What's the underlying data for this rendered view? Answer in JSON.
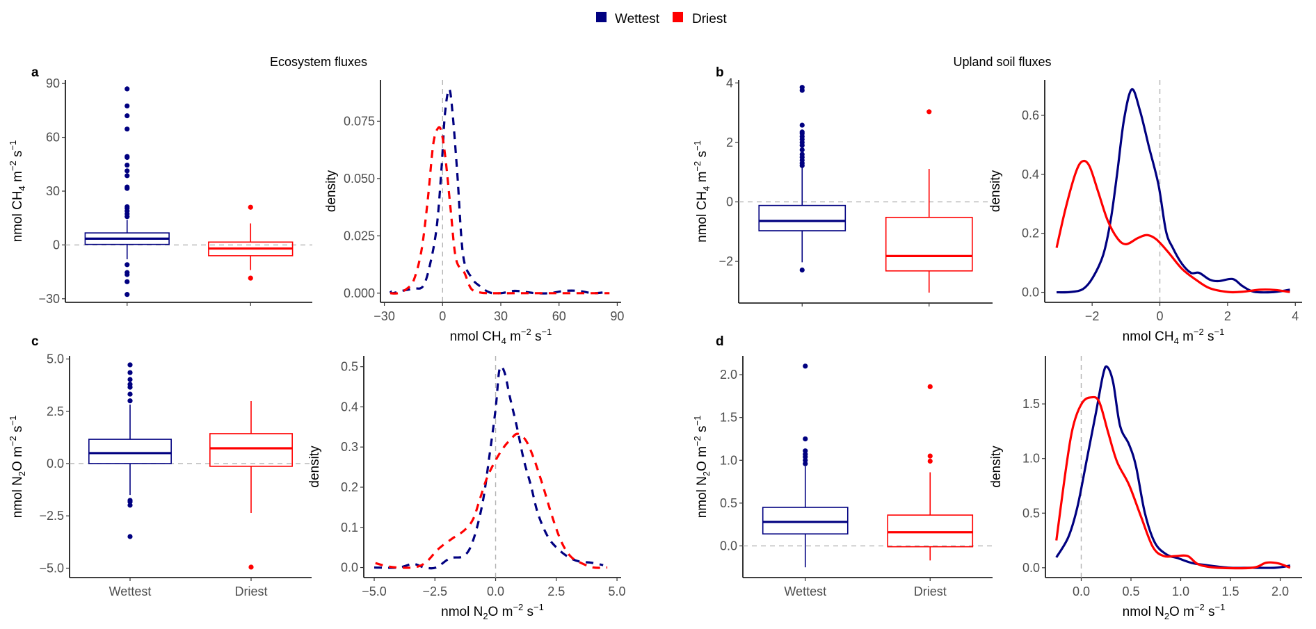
{
  "legend": {
    "items": [
      {
        "label": "Wettest",
        "color": "#000080"
      },
      {
        "label": "Driest",
        "color": "#ff0000"
      }
    ]
  },
  "titles": {
    "ecosystem": "Ecosystem fluxes",
    "upland": "Upland soil fluxes"
  },
  "chart_data": [
    {
      "id": "a-box",
      "panel_letter": "a",
      "type": "box",
      "title": "",
      "xlabel": "",
      "ylabel": {
        "pre": "nmol CH",
        "sub": "4",
        "mid": " m",
        "sup1": "−2",
        "mid2": " s",
        "sup2": "−1"
      },
      "categories": [
        "Wettest",
        "Driest"
      ],
      "show_category_labels": false,
      "ylim": [
        -32,
        92
      ],
      "yticks": [
        -30,
        0,
        30,
        60,
        90
      ],
      "ytick_labels": [
        "−30",
        "0",
        "30",
        "60",
        "90"
      ],
      "reference_line": 0,
      "series": [
        {
          "name": "Wettest",
          "color": "#000080",
          "q1": 0.3,
          "median": 3.5,
          "q3": 6.7,
          "whisker_low": -8,
          "whisker_high": 14,
          "outliers": [
            87,
            77.5,
            72,
            64.6,
            49.3,
            48.8,
            44.5,
            41.3,
            38.6,
            32.3,
            31.5,
            21.3,
            20.4,
            18.9,
            17.3,
            15.8,
            -11,
            -15.4,
            -16.5,
            -20.5,
            -27.6
          ]
        },
        {
          "name": "Driest",
          "color": "#ff0000",
          "q1": -6,
          "median": -2,
          "q3": 1.6,
          "whisker_low": -14,
          "whisker_high": 12,
          "outliers": [
            21,
            -18.5
          ]
        }
      ]
    },
    {
      "id": "a-density",
      "type": "line",
      "line_style": "dashed",
      "xlabel": {
        "pre": "nmol CH",
        "sub": "4",
        "mid": " m",
        "sup1": "−2",
        "mid2": " s",
        "sup2": "−1"
      },
      "ylabel": "density",
      "xlim": [
        -32,
        92
      ],
      "ylim": [
        -0.004,
        0.093
      ],
      "xticks": [
        -30,
        0,
        30,
        60,
        90
      ],
      "xtick_labels": [
        "−30",
        "0",
        "30",
        "60",
        "90"
      ],
      "yticks": [
        0,
        0.025,
        0.05,
        0.075
      ],
      "ytick_labels": [
        "0.000",
        "0.025",
        "0.050",
        "0.075"
      ],
      "reference_line_x": 0,
      "series": [
        {
          "name": "Wettest",
          "color": "#000080",
          "x": [
            -26.8,
            -26,
            -21,
            -14.7,
            -10.1,
            -6.6,
            -3.0,
            -0.5,
            1.2,
            3.4,
            5.2,
            7.6,
            10.5,
            14.7,
            19.3,
            24.3,
            30,
            37,
            43,
            48,
            55,
            63,
            70,
            77.5,
            84.6
          ],
          "y": [
            0.001,
            0.0,
            0.001,
            0.002,
            0.003,
            0.012,
            0.029,
            0.055,
            0.078,
            0.089,
            0.078,
            0.052,
            0.017,
            0.007,
            0.003,
            0.0003,
            0,
            0.001,
            0.0005,
            0,
            0,
            0.001,
            0.001,
            0,
            0.0005
          ]
        },
        {
          "name": "Driest",
          "color": "#ff0000",
          "x": [
            -27,
            -23,
            -18.3,
            -14.7,
            -10.8,
            -7.6,
            -4.8,
            -2.3,
            -0.5,
            1.6,
            4.1,
            6.9,
            11.2,
            14.7,
            19.3,
            25,
            40,
            60,
            86
          ],
          "y": [
            0,
            0,
            0.002,
            0.006,
            0.019,
            0.041,
            0.065,
            0.072,
            0.07,
            0.058,
            0.037,
            0.015,
            0.009,
            0.002,
            0.0003,
            0,
            0,
            0,
            0
          ]
        }
      ]
    },
    {
      "id": "b-box",
      "panel_letter": "b",
      "type": "box",
      "xlabel": "",
      "ylabel": {
        "pre": "nmol CH",
        "sub": "4",
        "mid": " m",
        "sup1": "−2",
        "mid2": " s",
        "sup2": "−1"
      },
      "categories": [
        "Wettest",
        "Driest"
      ],
      "show_category_labels": false,
      "ylim": [
        -3.4,
        4.1
      ],
      "yticks": [
        -2,
        0,
        2,
        4
      ],
      "ytick_labels": [
        "−2",
        "0",
        "2",
        "4"
      ],
      "reference_line": 0,
      "series": [
        {
          "name": "Wettest",
          "color": "#000080",
          "q1": -0.97,
          "median": -0.64,
          "q3": -0.12,
          "whisker_low": -2.03,
          "whisker_high": 1.16,
          "outliers": [
            3.85,
            3.75,
            2.58,
            2.35,
            2.3,
            2.2,
            2.1,
            2.0,
            1.9,
            1.75,
            1.6,
            1.5,
            1.4,
            1.3,
            1.22,
            -2.29
          ]
        },
        {
          "name": "Driest",
          "color": "#ff0000",
          "q1": -2.32,
          "median": -1.82,
          "q3": -0.52,
          "whisker_low": -3.05,
          "whisker_high": 1.11,
          "outliers": [
            3.03
          ]
        }
      ]
    },
    {
      "id": "b-density",
      "type": "line",
      "line_style": "solid",
      "xlabel": {
        "pre": "nmol CH",
        "sub": "4",
        "mid": " m",
        "sup1": "−2",
        "mid2": " s",
        "sup2": "−1"
      },
      "ylabel": "density",
      "xlim": [
        -3.4,
        4.2
      ],
      "ylim": [
        -0.034,
        0.72
      ],
      "xticks": [
        -2,
        0,
        2,
        4
      ],
      "xtick_labels": [
        "−2",
        "0",
        "2",
        "4"
      ],
      "yticks": [
        0,
        0.2,
        0.4,
        0.6
      ],
      "ytick_labels": [
        "0.0",
        "0.2",
        "0.4",
        "0.6"
      ],
      "reference_line_x": 0,
      "series": [
        {
          "name": "Wettest",
          "color": "#000080",
          "x": [
            -3.05,
            -2.64,
            -2.27,
            -1.98,
            -1.67,
            -1.45,
            -1.26,
            -1.06,
            -0.83,
            -0.59,
            -0.32,
            -0.04,
            0.18,
            0.38,
            0.65,
            0.92,
            1.16,
            1.47,
            1.74,
            2.15,
            2.44,
            2.77,
            3.26,
            3.53,
            3.84
          ],
          "y": [
            0,
            0.001,
            0.011,
            0.05,
            0.128,
            0.246,
            0.404,
            0.585,
            0.688,
            0.617,
            0.492,
            0.364,
            0.208,
            0.151,
            0.097,
            0.066,
            0.066,
            0.043,
            0.038,
            0.045,
            0.021,
            0.002,
            0,
            0.003,
            0.009
          ]
        },
        {
          "name": "Driest",
          "color": "#ff0000",
          "x": [
            -3.05,
            -2.78,
            -2.49,
            -2.29,
            -2.08,
            -1.82,
            -1.55,
            -1.26,
            -1.0,
            -0.65,
            -0.38,
            -0.11,
            0.24,
            0.65,
            1.06,
            1.47,
            2.02,
            2.44,
            2.98,
            3.39,
            3.84
          ],
          "y": [
            0.151,
            0.286,
            0.404,
            0.444,
            0.428,
            0.34,
            0.246,
            0.184,
            0.163,
            0.184,
            0.194,
            0.18,
            0.137,
            0.08,
            0.043,
            0.014,
            0.001,
            0.002,
            0.009,
            0.008,
            0.001
          ]
        }
      ]
    },
    {
      "id": "c-box",
      "panel_letter": "c",
      "type": "box",
      "xlabel": "",
      "ylabel": {
        "pre": "nmol N",
        "sub": "2",
        "mid": "O m",
        "sup1": "−2",
        "mid2": " s",
        "sup2": "−1"
      },
      "categories": [
        "Wettest",
        "Driest"
      ],
      "show_category_labels": true,
      "ylim": [
        -5.45,
        5.15
      ],
      "yticks": [
        -5,
        -2.5,
        0,
        2.5,
        5
      ],
      "ytick_labels": [
        "−5.0",
        "−2.5",
        "0.0",
        "2.5",
        "5.0"
      ],
      "reference_line": 0,
      "series": [
        {
          "name": "Wettest",
          "color": "#000080",
          "q1": 0,
          "median": 0.5,
          "q3": 1.16,
          "whisker_low": -1.5,
          "whisker_high": 2.82,
          "outliers": [
            4.72,
            4.35,
            4.02,
            3.79,
            3.65,
            3.32,
            3.0,
            -1.76,
            -1.83,
            -1.99,
            -3.49
          ]
        },
        {
          "name": "Driest",
          "color": "#ff0000",
          "q1": -0.13,
          "median": 0.73,
          "q3": 1.43,
          "whisker_low": -2.36,
          "whisker_high": 2.99,
          "outliers": [
            -4.95
          ]
        }
      ]
    },
    {
      "id": "c-density",
      "type": "line",
      "line_style": "dashed",
      "xlabel": {
        "pre": "nmol N",
        "sub": "2",
        "mid": "O m",
        "sup1": "−2",
        "mid2": " s",
        "sup2": "−1"
      },
      "ylabel": "density",
      "xlim": [
        -5.43,
        5.17
      ],
      "ylim": [
        -0.025,
        0.527
      ],
      "xticks": [
        -5,
        -2.5,
        0,
        2.5,
        5
      ],
      "xtick_labels": [
        "−5.0",
        "−2.5",
        "0.0",
        "2.5",
        "5.0"
      ],
      "yticks": [
        0,
        0.1,
        0.2,
        0.3,
        0.4,
        0.5
      ],
      "ytick_labels": [
        "0.0",
        "0.1",
        "0.2",
        "0.3",
        "0.4",
        "0.5"
      ],
      "reference_line_x": 0,
      "series": [
        {
          "name": "Wettest",
          "color": "#000080",
          "x": [
            -5,
            -4,
            -3.4,
            -2.93,
            -2.45,
            -1.88,
            -1.3,
            -0.93,
            -0.54,
            -0.25,
            0,
            0.16,
            0.36,
            0.59,
            0.88,
            1.16,
            1.45,
            1.74,
            2.14,
            2.52,
            3.0,
            3.45,
            3.95,
            4.43
          ],
          "y": [
            0,
            0,
            0.009,
            0,
            0,
            0.023,
            0.029,
            0.067,
            0.16,
            0.28,
            0.395,
            0.493,
            0.487,
            0.424,
            0.349,
            0.268,
            0.205,
            0.135,
            0.078,
            0.049,
            0.026,
            0.015,
            0.012,
            0.006
          ]
        },
        {
          "name": "Driest",
          "color": "#ff0000",
          "x": [
            -4.95,
            -4.46,
            -4,
            -3.3,
            -2.85,
            -2.36,
            -1.79,
            -1.3,
            -0.93,
            -0.64,
            -0.35,
            0,
            0.33,
            0.62,
            0.9,
            1.24,
            1.57,
            1.95,
            2.33,
            2.71,
            3.1,
            3.57,
            4.05,
            4.6
          ],
          "y": [
            0.011,
            0.003,
            0,
            0.001,
            0.014,
            0.046,
            0.072,
            0.092,
            0.12,
            0.172,
            0.224,
            0.267,
            0.299,
            0.319,
            0.333,
            0.317,
            0.272,
            0.203,
            0.127,
            0.064,
            0.027,
            0.01,
            0,
            0
          ]
        }
      ]
    },
    {
      "id": "d-box",
      "panel_letter": "d",
      "type": "box",
      "xlabel": "",
      "ylabel": {
        "pre": "nmol N",
        "sub": "2",
        "mid": "O m",
        "sup1": "−2",
        "mid2": " s",
        "sup2": "−1"
      },
      "categories": [
        "Wettest",
        "Driest"
      ],
      "show_category_labels": true,
      "ylim": [
        -0.37,
        2.22
      ],
      "yticks": [
        0,
        0.5,
        1.0,
        1.5,
        2.0
      ],
      "ytick_labels": [
        "0.0",
        "0.5",
        "1.0",
        "1.5",
        "2.0"
      ],
      "reference_line": 0,
      "series": [
        {
          "name": "Wettest",
          "color": "#000080",
          "q1": 0.14,
          "median": 0.28,
          "q3": 0.45,
          "whisker_low": -0.25,
          "whisker_high": 0.93,
          "outliers": [
            2.1,
            1.25,
            1.11,
            1.07,
            1.04,
            1.0,
            0.96
          ]
        },
        {
          "name": "Driest",
          "color": "#ff0000",
          "q1": -0.01,
          "median": 0.16,
          "q3": 0.36,
          "whisker_low": -0.17,
          "whisker_high": 0.86,
          "outliers": [
            1.86,
            1.05,
            0.99
          ]
        }
      ]
    },
    {
      "id": "d-density",
      "type": "line",
      "line_style": "solid",
      "xlabel": {
        "pre": "nmol N",
        "sub": "2",
        "mid": "O m",
        "sup1": "−2",
        "mid2": " s",
        "sup2": "−1"
      },
      "ylabel": "density",
      "xlim": [
        -0.36,
        2.22
      ],
      "ylim": [
        -0.09,
        1.94
      ],
      "xticks": [
        0,
        0.5,
        1.0,
        1.5,
        2.0
      ],
      "xtick_labels": [
        "0.0",
        "0.5",
        "1.0",
        "1.5",
        "2.0"
      ],
      "yticks": [
        0,
        0.5,
        1.0,
        1.5
      ],
      "ytick_labels": [
        "0.0",
        "0.5",
        "1.0",
        "1.5"
      ],
      "reference_line_x": 0,
      "series": [
        {
          "name": "Wettest",
          "color": "#000080",
          "x": [
            -0.25,
            -0.13,
            -0.04,
            0.06,
            0.15,
            0.22,
            0.26,
            0.32,
            0.39,
            0.48,
            0.55,
            0.64,
            0.74,
            0.86,
            0.97,
            1.11,
            1.25,
            1.49,
            1.72,
            1.95,
            2.1
          ],
          "y": [
            0.095,
            0.28,
            0.55,
            1.01,
            1.43,
            1.77,
            1.84,
            1.7,
            1.3,
            1.13,
            0.93,
            0.5,
            0.23,
            0.12,
            0.088,
            0.044,
            0.025,
            0,
            0,
            0,
            0.02
          ]
        },
        {
          "name": "Driest",
          "color": "#ff0000",
          "x": [
            -0.25,
            -0.15,
            -0.08,
            0.01,
            0.1,
            0.18,
            0.27,
            0.36,
            0.48,
            0.6,
            0.72,
            0.83,
            0.95,
            1.07,
            1.18,
            1.37,
            1.72,
            1.86,
            1.98,
            2.1
          ],
          "y": [
            0.25,
            0.93,
            1.3,
            1.51,
            1.56,
            1.52,
            1.24,
            0.97,
            0.76,
            0.47,
            0.19,
            0.107,
            0.107,
            0.107,
            0.03,
            0,
            0,
            0.046,
            0.04,
            0
          ]
        }
      ]
    }
  ]
}
